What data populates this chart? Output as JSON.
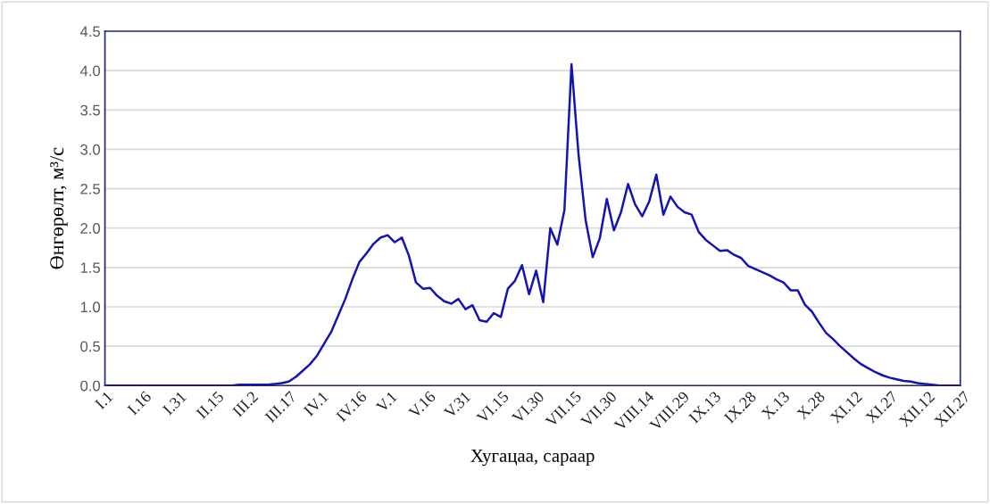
{
  "chart_data": {
    "type": "line",
    "xlabel": "Хугацаа, сараар",
    "ylabel": "Өнгөрөлт, м³/с",
    "categories": [
      "I.1",
      null,
      null,
      null,
      null,
      "I.16",
      null,
      null,
      null,
      null,
      "I.31",
      null,
      null,
      null,
      null,
      "II.15",
      null,
      null,
      null,
      null,
      "III.2",
      null,
      null,
      null,
      null,
      "III.17",
      null,
      null,
      null,
      null,
      "IV.1",
      null,
      null,
      null,
      null,
      "IV.16",
      null,
      null,
      null,
      null,
      "V.1",
      null,
      null,
      null,
      null,
      "V.16",
      null,
      null,
      null,
      null,
      "V.31",
      null,
      null,
      null,
      null,
      "VI.15",
      null,
      null,
      null,
      null,
      "VI.30",
      null,
      null,
      null,
      null,
      "VII.15",
      null,
      null,
      null,
      null,
      "VII.30",
      null,
      null,
      null,
      null,
      "VIII.14",
      null,
      null,
      null,
      null,
      "VIII.29",
      null,
      null,
      null,
      null,
      "IX.13",
      null,
      null,
      null,
      null,
      "IX.28",
      null,
      null,
      null,
      null,
      "X.13",
      null,
      null,
      null,
      null,
      "X.28",
      null,
      null,
      null,
      null,
      "XI.12",
      null,
      null,
      null,
      null,
      "XI.27",
      null,
      null,
      null,
      null,
      "XII.12",
      null,
      null,
      null,
      null,
      "XII.27",
      null
    ],
    "series": [
      {
        "color": "#1414b4",
        "values": [
          0,
          0,
          0,
          0,
          0,
          0,
          0,
          0,
          0,
          0,
          0,
          0,
          0,
          0,
          0,
          0,
          0,
          0,
          0,
          0.01,
          0.01,
          0.01,
          0.01,
          0.01,
          0.02,
          0.03,
          0.05,
          0.11,
          0.19,
          0.27,
          0.38,
          0.53,
          0.68,
          0.89,
          1.1,
          1.35,
          1.57,
          1.68,
          1.8,
          1.88,
          1.91,
          1.82,
          1.88,
          1.65,
          1.31,
          1.23,
          1.24,
          1.14,
          1.07,
          1.04,
          1.1,
          0.97,
          1.02,
          0.83,
          0.81,
          0.92,
          0.87,
          1.23,
          1.33,
          1.53,
          1.16,
          1.46,
          1.06,
          2.0,
          1.79,
          2.23,
          4.08,
          2.93,
          2.1,
          1.63,
          1.87,
          2.37,
          1.97,
          2.2,
          2.56,
          2.3,
          2.15,
          2.34,
          2.68,
          2.17,
          2.4,
          2.27,
          2.2,
          2.17,
          1.95,
          1.85,
          1.78,
          1.71,
          1.72,
          1.66,
          1.62,
          1.52,
          1.48,
          1.44,
          1.4,
          1.35,
          1.31,
          1.21,
          1.21,
          1.03,
          0.94,
          0.8,
          0.67,
          0.59,
          0.5,
          0.42,
          0.34,
          0.27,
          0.22,
          0.17,
          0.13,
          0.1,
          0.08,
          0.06,
          0.05,
          0.03,
          0.02,
          0.01,
          0,
          0,
          0,
          0
        ]
      }
    ],
    "ylim": [
      0,
      4.5
    ],
    "yticks": [
      {
        "value": 0,
        "label": "0.0"
      },
      {
        "value": 0.5,
        "label": "0.5"
      },
      {
        "value": 1,
        "label": "1.0"
      },
      {
        "value": 1.5,
        "label": "1.5"
      },
      {
        "value": 2,
        "label": "2.0"
      },
      {
        "value": 2.5,
        "label": "2.5"
      },
      {
        "value": 3,
        "label": "3.0"
      },
      {
        "value": 3.5,
        "label": "3.5"
      },
      {
        "value": 4,
        "label": "4.0"
      },
      {
        "value": 4.5,
        "label": "4.5"
      }
    ],
    "grid": "y",
    "marker": "none",
    "line_style": "solid"
  }
}
